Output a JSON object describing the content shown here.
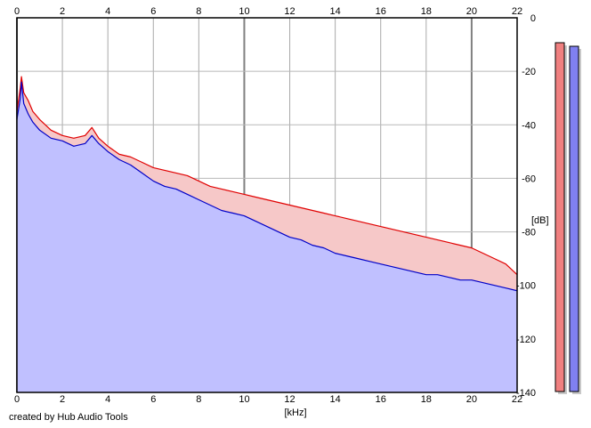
{
  "credit": "created by Hub Audio Tools",
  "chart_data": {
    "type": "area",
    "xlabel": "[kHz]",
    "ylabel": "[dB]",
    "xlim": [
      0,
      22
    ],
    "ylim": [
      -140,
      0
    ],
    "x_ticks": [
      0,
      2,
      4,
      6,
      8,
      10,
      12,
      14,
      16,
      18,
      20,
      22
    ],
    "y_ticks": [
      0,
      -20,
      -40,
      -60,
      -80,
      -100,
      -120,
      -140
    ],
    "y_tick_labels": [
      "0",
      "-20",
      "-40",
      "-60",
      "-80",
      "-100",
      "-120",
      "-140"
    ],
    "grid": true,
    "series": [
      {
        "color": "#e00000",
        "fill": "#f6c8c8",
        "x": [
          0,
          0.15,
          0.2,
          0.3,
          0.5,
          0.7,
          1,
          1.5,
          2,
          2.5,
          3,
          3.3,
          3.6,
          4,
          4.5,
          5,
          5.5,
          6,
          6.5,
          7,
          7.5,
          8,
          8.5,
          9,
          9.5,
          10,
          10.5,
          11,
          11.5,
          12,
          12.5,
          13,
          13.5,
          14,
          14.5,
          15,
          15.5,
          16,
          16.5,
          17,
          17.5,
          18,
          18.5,
          19,
          19.5,
          20,
          20.5,
          21,
          21.5,
          22
        ],
        "values": [
          -35,
          -26,
          -22,
          -28,
          -31,
          -35,
          -38,
          -42,
          -44,
          -45,
          -44,
          -41,
          -45,
          -48,
          -51,
          -52,
          -54,
          -56,
          -57,
          -58,
          -59,
          -61,
          -63,
          -64,
          -65,
          -66,
          -67,
          -68,
          -69,
          -70,
          -71,
          -72,
          -73,
          -74,
          -75,
          -76,
          -77,
          -78,
          -79,
          -80,
          -81,
          -82,
          -83,
          -84,
          -85,
          -86,
          -88,
          -90,
          -92,
          -96
        ]
      },
      {
        "color": "#0000c8",
        "fill": "#c0c0ff",
        "x": [
          0,
          0.15,
          0.2,
          0.3,
          0.5,
          0.7,
          1,
          1.5,
          2,
          2.5,
          3,
          3.3,
          3.6,
          4,
          4.5,
          5,
          5.5,
          6,
          6.5,
          7,
          7.5,
          8,
          8.5,
          9,
          9.5,
          10,
          10.5,
          11,
          11.5,
          12,
          12.5,
          13,
          13.5,
          14,
          14.5,
          15,
          15.5,
          16,
          16.5,
          17,
          17.5,
          18,
          18.5,
          19,
          19.5,
          20,
          20.5,
          21,
          21.5,
          22
        ],
        "values": [
          -38,
          -30,
          -24,
          -32,
          -36,
          -39,
          -42,
          -45,
          -46,
          -48,
          -47,
          -44,
          -47,
          -50,
          -53,
          -55,
          -58,
          -61,
          -63,
          -64,
          -66,
          -68,
          -70,
          -72,
          -73,
          -74,
          -76,
          -78,
          -80,
          -82,
          -83,
          -85,
          -86,
          -88,
          -89,
          -90,
          -91,
          -92,
          -93,
          -94,
          -95,
          -96,
          -96,
          -97,
          -98,
          -98,
          -99,
          -100,
          -101,
          -102
        ]
      }
    ],
    "level_meters": [
      {
        "value": -140,
        "color": "#f08080"
      },
      {
        "value": -140,
        "color": "#8080f0"
      }
    ]
  }
}
